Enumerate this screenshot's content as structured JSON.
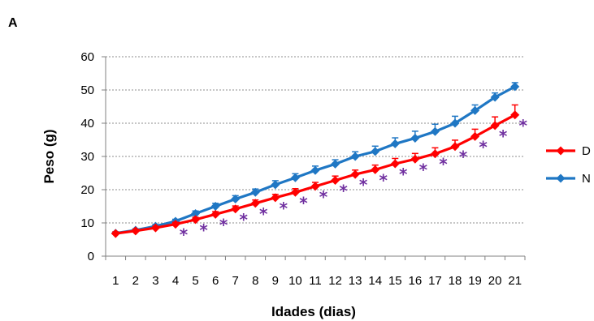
{
  "panel_label": "A",
  "chart_data": {
    "type": "line",
    "title": "",
    "xlabel": "Idades (dias)",
    "ylabel": "Peso  (g)",
    "x": [
      1,
      2,
      3,
      4,
      5,
      6,
      7,
      8,
      9,
      10,
      11,
      12,
      13,
      14,
      15,
      16,
      17,
      18,
      19,
      20,
      21
    ],
    "ylim": [
      0,
      60
    ],
    "yticks": [
      "0",
      "10",
      "20",
      "30",
      "40",
      "50",
      "60"
    ],
    "grid": "horizontal dashed",
    "legend": "right",
    "series": [
      {
        "name": "D",
        "color": "#ff0000",
        "marker": "diamond",
        "values": [
          6.8,
          7.6,
          8.5,
          9.6,
          11.0,
          12.6,
          14.2,
          15.9,
          17.6,
          19.2,
          21.0,
          22.8,
          24.6,
          26.0,
          27.8,
          29.2,
          30.8,
          33.0,
          36.0,
          39.3,
          42.5
        ],
        "errors": [
          0.5,
          0.5,
          0.5,
          0.6,
          0.7,
          0.8,
          0.9,
          1.0,
          1.0,
          1.1,
          1.2,
          1.3,
          1.3,
          1.4,
          1.6,
          1.7,
          1.8,
          1.9,
          2.2,
          2.6,
          3.0
        ]
      },
      {
        "name": "N",
        "color": "#1f77c4",
        "marker": "diamond",
        "values": [
          6.9,
          7.8,
          9.0,
          10.5,
          12.8,
          15.0,
          17.2,
          19.2,
          21.5,
          23.6,
          25.8,
          27.7,
          30.0,
          31.5,
          33.8,
          35.5,
          37.5,
          40.0,
          43.8,
          47.8,
          51.0
        ],
        "errors": [
          0.4,
          0.4,
          0.5,
          0.6,
          0.8,
          0.9,
          1.0,
          1.0,
          1.2,
          1.2,
          1.3,
          1.3,
          1.4,
          1.6,
          1.8,
          2.1,
          2.2,
          2.1,
          1.7,
          1.3,
          1.2
        ]
      }
    ],
    "significance": {
      "symbol": "*",
      "color": "#7030a0",
      "days": [
        4,
        5,
        6,
        7,
        8,
        9,
        10,
        11,
        12,
        13,
        14,
        15,
        16,
        17,
        18,
        19,
        20,
        21
      ]
    }
  }
}
